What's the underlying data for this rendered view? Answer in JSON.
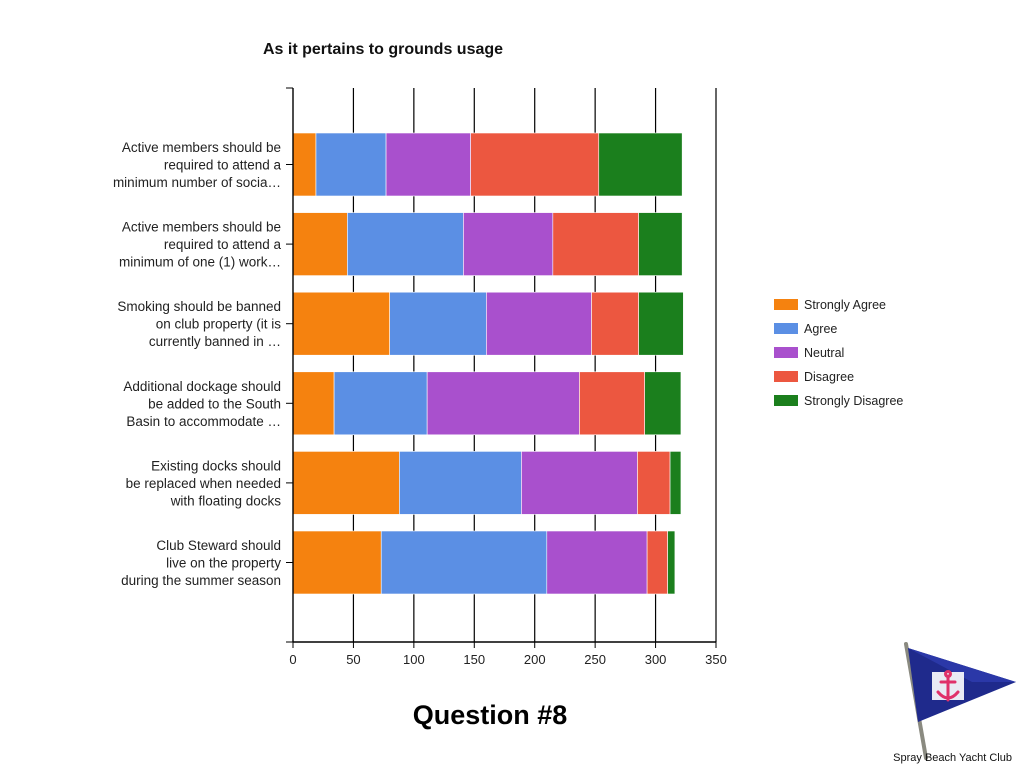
{
  "chart_data": {
    "type": "bar",
    "orientation": "horizontal",
    "stacked": true,
    "title": "As it pertains to grounds usage",
    "categories": [
      [
        "Active members should be",
        "required to attend a",
        "minimum number of socia…"
      ],
      [
        "Active members should be",
        "required to attend a",
        "minimum of one (1) work…"
      ],
      [
        "Smoking should be banned",
        "on club property (it is",
        "currently banned in …"
      ],
      [
        "Additional dockage should",
        "be added to the South",
        "Basin to accommodate …"
      ],
      [
        "Existing docks should",
        "be replaced when needed",
        "with floating docks"
      ],
      [
        "Club Steward should",
        "live on the property",
        "during the summer season"
      ]
    ],
    "series": [
      {
        "name": "Strongly Agree",
        "color": "#f5820f",
        "values": [
          19,
          45,
          80,
          34,
          88,
          73
        ]
      },
      {
        "name": "Agree",
        "color": "#5b8fe4",
        "values": [
          58,
          96,
          80,
          77,
          101,
          137
        ]
      },
      {
        "name": "Neutral",
        "color": "#a950cd",
        "values": [
          70,
          74,
          87,
          126,
          96,
          83
        ]
      },
      {
        "name": "Disagree",
        "color": "#ec5740",
        "values": [
          106,
          71,
          39,
          54,
          27,
          17
        ]
      },
      {
        "name": "Strongly Disagree",
        "color": "#1b7f1d",
        "values": [
          69,
          36,
          37,
          30,
          9,
          6
        ]
      }
    ],
    "xlim": [
      0,
      350
    ],
    "xticks": [
      0,
      50,
      100,
      150,
      200,
      250,
      300,
      350
    ],
    "grid": true,
    "legend_position": "right"
  },
  "slide": {
    "heading": "Question #8",
    "logo_caption": "Spray Beach Yacht Club",
    "logo_icon": "pennant-flag-anchor-icon"
  }
}
